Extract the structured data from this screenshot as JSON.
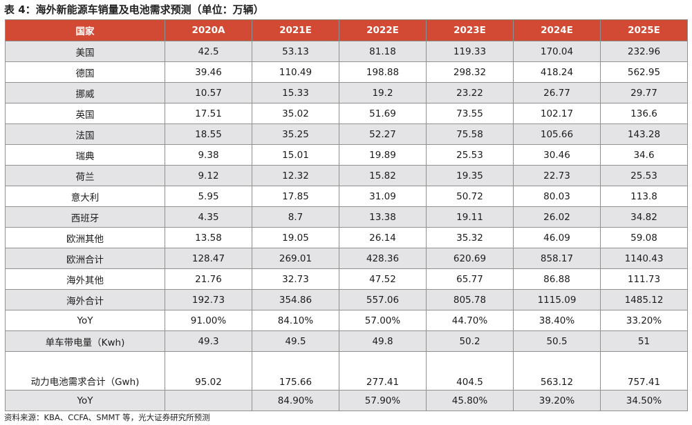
{
  "title": "表 4：海外新能源车销量及电池需求预测（单位：万辆）",
  "table": {
    "headers": [
      "国家",
      "2020A",
      "2021E",
      "2022E",
      "2023E",
      "2024E",
      "2025E"
    ],
    "rows": [
      [
        "美国",
        "42.5",
        "53.13",
        "81.18",
        "119.33",
        "170.04",
        "232.96"
      ],
      [
        "德国",
        "39.46",
        "110.49",
        "198.88",
        "298.32",
        "418.24",
        "562.95"
      ],
      [
        "挪威",
        "10.57",
        "15.33",
        "19.2",
        "23.22",
        "26.77",
        "29.77"
      ],
      [
        "英国",
        "17.51",
        "35.02",
        "51.69",
        "73.55",
        "102.17",
        "136.6"
      ],
      [
        "法国",
        "18.55",
        "35.25",
        "52.27",
        "75.58",
        "105.66",
        "143.28"
      ],
      [
        "瑞典",
        "9.38",
        "15.01",
        "19.89",
        "25.53",
        "30.46",
        "34.6"
      ],
      [
        "荷兰",
        "9.12",
        "12.32",
        "15.82",
        "19.35",
        "22.73",
        "25.53"
      ],
      [
        "意大利",
        "5.95",
        "17.85",
        "31.09",
        "50.72",
        "80.03",
        "113.8"
      ],
      [
        "西班牙",
        "4.35",
        "8.7",
        "13.38",
        "19.11",
        "26.02",
        "34.82"
      ],
      [
        "欧洲其他",
        "13.58",
        "19.05",
        "26.14",
        "35.32",
        "46.09",
        "59.08"
      ],
      [
        "欧洲合计",
        "128.47",
        "269.01",
        "428.36",
        "620.69",
        "858.17",
        "1140.43"
      ],
      [
        "海外其他",
        "21.76",
        "32.73",
        "47.52",
        "65.77",
        "86.88",
        "111.73"
      ],
      [
        "海外合计",
        "192.73",
        "354.86",
        "557.06",
        "805.78",
        "1115.09",
        "1485.12"
      ],
      [
        "YoY",
        "91.00%",
        "84.10%",
        "57.00%",
        "44.70%",
        "38.40%",
        "33.20%"
      ],
      [
        "单车带电量（Kwh)",
        "49.3",
        "49.5",
        "49.8",
        "50.2",
        "50.5",
        "51"
      ],
      [
        "动力电池需求合计（Gwh)",
        "95.02",
        "175.66",
        "277.41",
        "404.5",
        "563.12",
        "757.41"
      ],
      [
        "YoY",
        "",
        "84.90%",
        "57.90%",
        "45.80%",
        "39.20%",
        "34.50%"
      ]
    ]
  },
  "source": "资料来源：KBA、CCFA、SMMT 等，光大证券研究所预测",
  "colors": {
    "header_bg": "#d24a33",
    "header_text": "#ffffff",
    "shaded_row": "#e4e4e7"
  }
}
